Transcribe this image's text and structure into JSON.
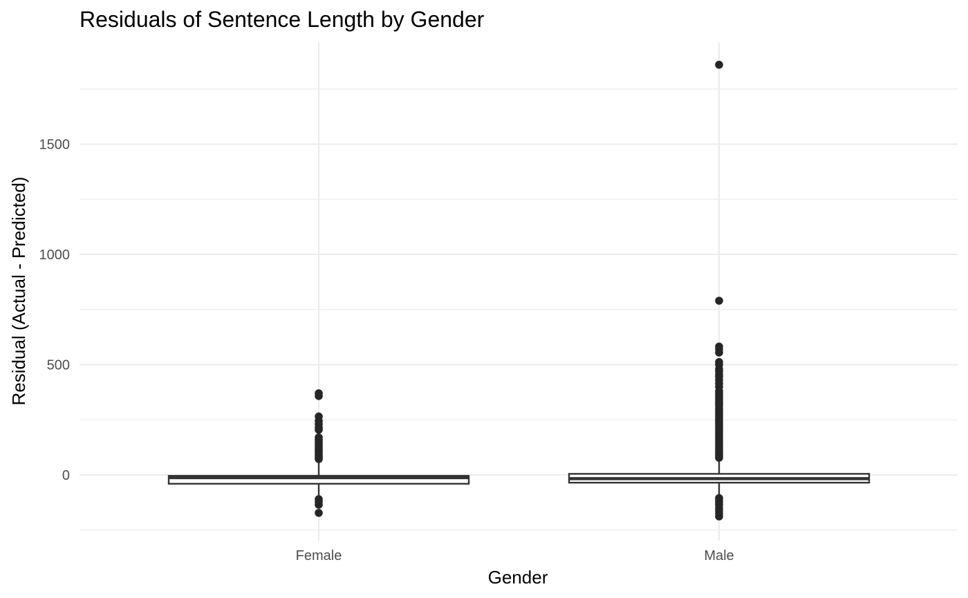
{
  "chart_data": {
    "type": "boxplot",
    "title": "Residuals of Sentence Length by Gender",
    "xlabel": "Gender",
    "ylabel": "Residual (Actual - Predicted)",
    "categories": [
      "Female",
      "Male"
    ],
    "yticks": [
      0,
      500,
      1000,
      1500
    ],
    "ylim": [
      -260,
      1960
    ],
    "grid": true,
    "legend": "none",
    "boxes": [
      {
        "category": "Female",
        "q1": -40,
        "median": -12,
        "q3": -4,
        "whisker_low": -140,
        "whisker_high": 70,
        "outliers": [
          370,
          358,
          265,
          245,
          230,
          215,
          205,
          170,
          160,
          150,
          140,
          130,
          120,
          112,
          105,
          95,
          88,
          80,
          72,
          -110,
          -122,
          -135,
          -172
        ]
      },
      {
        "category": "Male",
        "q1": -35,
        "median": -17,
        "q3": 5,
        "whisker_low": -100,
        "whisker_high": 70,
        "outliers": [
          1860,
          790,
          582,
          570,
          555,
          512,
          500,
          480,
          470,
          455,
          445,
          430,
          415,
          400,
          380,
          370,
          360,
          350,
          340,
          330,
          322,
          312,
          300,
          290,
          280,
          270,
          260,
          250,
          242,
          232,
          222,
          212,
          202,
          192,
          182,
          172,
          162,
          152,
          142,
          132,
          122,
          112,
          102,
          94,
          86,
          78,
          -105,
          -115,
          -125,
          -135,
          -150,
          -162,
          -175,
          -188
        ]
      }
    ],
    "colors": {
      "box_stroke": "#333333",
      "point": "#262626",
      "box_fill": "#ffffff"
    }
  }
}
